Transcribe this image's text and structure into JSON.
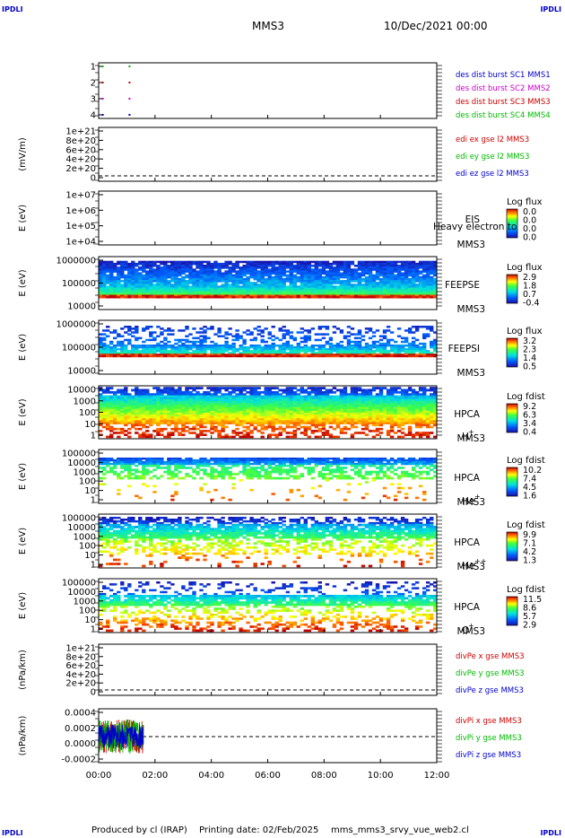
{
  "header": {
    "spacecraft": "MMS3",
    "datetime": "10/Dec/2021 00:00",
    "corner": "IPDLI"
  },
  "footer": {
    "produced_by": "Produced by cl (IRAP)",
    "printing_date": "Printing date: 02/Feb/2025",
    "filename": "mms_mms3_srvy_vue_web2.cl"
  },
  "chart_data": [
    {
      "id": "burst",
      "type": "scatter",
      "xlim": [
        "00:00",
        "12:00"
      ],
      "ylim": [
        0.5,
        4.5
      ],
      "yticks": [
        "1",
        "2",
        "3",
        "4"
      ],
      "ylabel": "",
      "legend": [
        {
          "label": "des dist burst SC1 MMS1",
          "color": "#0000cc"
        },
        {
          "label": "des dist burst SC2 MMS2",
          "color": "#cc00cc"
        },
        {
          "label": "des dist burst SC3 MMS3",
          "color": "#cc0000"
        },
        {
          "label": "des dist burst SC4 MMS4",
          "color": "#00bb00"
        }
      ],
      "series": [
        {
          "name": "des dist burst SC4 MMS4",
          "level": 4,
          "times_h": [
            0.05,
            1.0
          ]
        },
        {
          "name": "des dist burst SC3 MMS3",
          "level": 3,
          "times_h": [
            0.05,
            1.0
          ]
        },
        {
          "name": "des dist burst SC2 MMS2",
          "level": 2,
          "times_h": [
            0.05,
            1.0
          ]
        },
        {
          "name": "des dist burst SC1 MMS1",
          "level": 1,
          "times_h": [
            0.05,
            1.0
          ]
        }
      ]
    },
    {
      "id": "edi",
      "type": "line",
      "ylabel": "(mV/m)",
      "ylim": [
        -2e+20,
        1.1e+21
      ],
      "yticks": [
        "1e+21",
        "8e+20",
        "6e+20",
        "4e+20",
        "2e+20",
        "0"
      ],
      "legend": [
        {
          "label": "edi ex gse l2 MMS3",
          "color": "#cc0000"
        },
        {
          "label": "edi ey gse l2 MMS3",
          "color": "#00bb00"
        },
        {
          "label": "edi ez gse l2 MMS3",
          "color": "#0000cc"
        }
      ],
      "zero_line": true
    },
    {
      "id": "eis",
      "type": "heatmap",
      "ylabel": "E (eV)",
      "yticks": [
        "1e+07",
        "1e+06",
        "1e+05",
        "1e+04"
      ],
      "instrument": "EIS",
      "spacecraft": "MMS3",
      "overflow_text": "Heavy electron to",
      "colorbar": {
        "title": "Log flux",
        "ticks": [
          "0.0",
          "0.0",
          "0.0",
          "0.0"
        ]
      }
    },
    {
      "id": "feepse",
      "type": "heatmap",
      "ylabel": "E (eV)",
      "yticks": [
        "1000000",
        "100000",
        "10000"
      ],
      "instrument": "FEEPSE",
      "spacecraft": "MMS3",
      "colorbar": {
        "title": "Log flux",
        "ticks": [
          "2.9",
          "1.8",
          "0.7",
          "-0.4"
        ]
      }
    },
    {
      "id": "feepsi",
      "type": "heatmap",
      "ylabel": "E (eV)",
      "yticks": [
        "1000000",
        "100000",
        "10000"
      ],
      "instrument": "FEEPSI",
      "spacecraft": "MMS3",
      "colorbar": {
        "title": "Log flux",
        "ticks": [
          "3.2",
          "2.3",
          "1.4",
          "0.5"
        ]
      }
    },
    {
      "id": "hpca_h",
      "type": "heatmap",
      "ylabel": "E (eV)",
      "yticks": [
        "10000",
        "1000",
        "100",
        "10",
        "1"
      ],
      "instrument": "HPCA",
      "spacecraft": "MMS3",
      "species": "H",
      "charge": "+",
      "colorbar": {
        "title": "Log fdist",
        "ticks": [
          "9.2",
          "6.3",
          "3.4",
          "0.4"
        ]
      }
    },
    {
      "id": "hpca_he",
      "type": "heatmap",
      "ylabel": "E (eV)",
      "yticks": [
        "100000",
        "10000",
        "1000",
        "100",
        "10",
        "1"
      ],
      "instrument": "HPCA",
      "spacecraft": "MMS3",
      "species": "He",
      "charge": "+",
      "colorbar": {
        "title": "Log fdist",
        "ticks": [
          "10.2",
          "7.4",
          "4.5",
          "1.6"
        ]
      }
    },
    {
      "id": "hpca_he2",
      "type": "heatmap",
      "ylabel": "E (eV)",
      "yticks": [
        "100000",
        "10000",
        "1000",
        "100",
        "10",
        "1"
      ],
      "instrument": "HPCA",
      "spacecraft": "MMS3",
      "species": "He",
      "charge": "++",
      "colorbar": {
        "title": "Log fdist",
        "ticks": [
          "9.9",
          "7.1",
          "4.2",
          "1.3"
        ]
      }
    },
    {
      "id": "hpca_o",
      "type": "heatmap",
      "ylabel": "E (eV)",
      "yticks": [
        "100000",
        "10000",
        "1000",
        "100",
        "10",
        "1"
      ],
      "instrument": "HPCA",
      "spacecraft": "MMS3",
      "species": "O",
      "charge": "+",
      "colorbar": {
        "title": "Log fdist",
        "ticks": [
          "11.5",
          "8.6",
          "5.7",
          "2.9"
        ]
      }
    },
    {
      "id": "divpe",
      "type": "line",
      "ylabel": "(nPa/km)",
      "ylim": [
        -2e+20,
        1.1e+21
      ],
      "yticks": [
        "1e+21",
        "8e+20",
        "6e+20",
        "4e+20",
        "2e+20",
        "0"
      ],
      "legend": [
        {
          "label": "divPe x gse MMS3",
          "color": "#cc0000"
        },
        {
          "label": "divPe y gse MMS3",
          "color": "#00bb00"
        },
        {
          "label": "divPe z gse MMS3",
          "color": "#0000cc"
        }
      ],
      "zero_line": true
    },
    {
      "id": "divpi",
      "type": "line",
      "ylabel": "(nPa/km)",
      "ylim": [
        -0.0004,
        0.0004
      ],
      "yticks": [
        "0.0004",
        "0.0002",
        "0.0000",
        "-0.0002"
      ],
      "legend": [
        {
          "label": "divPi x gse MMS3",
          "color": "#cc0000"
        },
        {
          "label": "divPi y gse MMS3",
          "color": "#00bb00"
        },
        {
          "label": "divPi z gse MMS3",
          "color": "#0000cc"
        }
      ],
      "zero_line": true,
      "data_span_h": [
        0.0,
        1.6
      ]
    }
  ],
  "x_axis": {
    "ticks": [
      "00:00",
      "02:00",
      "04:00",
      "06:00",
      "08:00",
      "10:00",
      "12:00"
    ],
    "range_h": [
      0,
      12
    ]
  }
}
